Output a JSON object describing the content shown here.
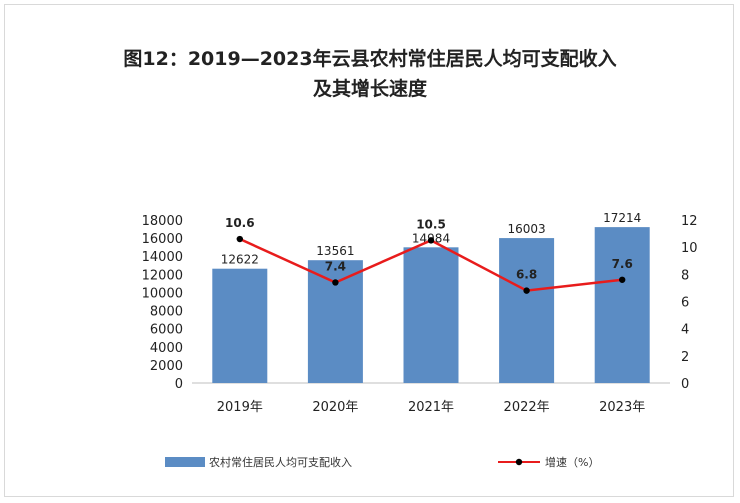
{
  "chart_data": {
    "type": "bar",
    "title_line1": "图12：2019—2023年云县农村常住居民人均可支配收入",
    "title_line2": "及其增长速度",
    "categories": [
      "2019年",
      "2020年",
      "2021年",
      "2022年",
      "2023年"
    ],
    "series": [
      {
        "name": "农村常住居民人均可支配收入",
        "type": "bar",
        "axis": "left",
        "color": "#5b8cc4",
        "values": [
          12622,
          13561,
          14984,
          16003,
          17214
        ]
      },
      {
        "name": "增速（%）",
        "type": "line",
        "axis": "right",
        "color": "#e81c1c",
        "marker_color": "#000000",
        "values": [
          10.6,
          7.4,
          10.5,
          6.8,
          7.6
        ]
      }
    ],
    "y_left": {
      "ylim": [
        0,
        18000
      ],
      "ticks": [
        "0",
        "2000",
        "4000",
        "6000",
        "8000",
        "10000",
        "12000",
        "14000",
        "16000",
        "18000"
      ]
    },
    "y_right": {
      "ylim": [
        0,
        12
      ],
      "ticks": [
        "0",
        "2",
        "4",
        "6",
        "8",
        "10",
        "12"
      ]
    },
    "bar_labels": [
      "12622",
      "13561",
      "14984",
      "16003",
      "17214"
    ],
    "line_labels": [
      "10.6",
      "7.4",
      "10.5",
      "6.8",
      "7.6"
    ],
    "grid": false,
    "legend_position": "bottom"
  }
}
